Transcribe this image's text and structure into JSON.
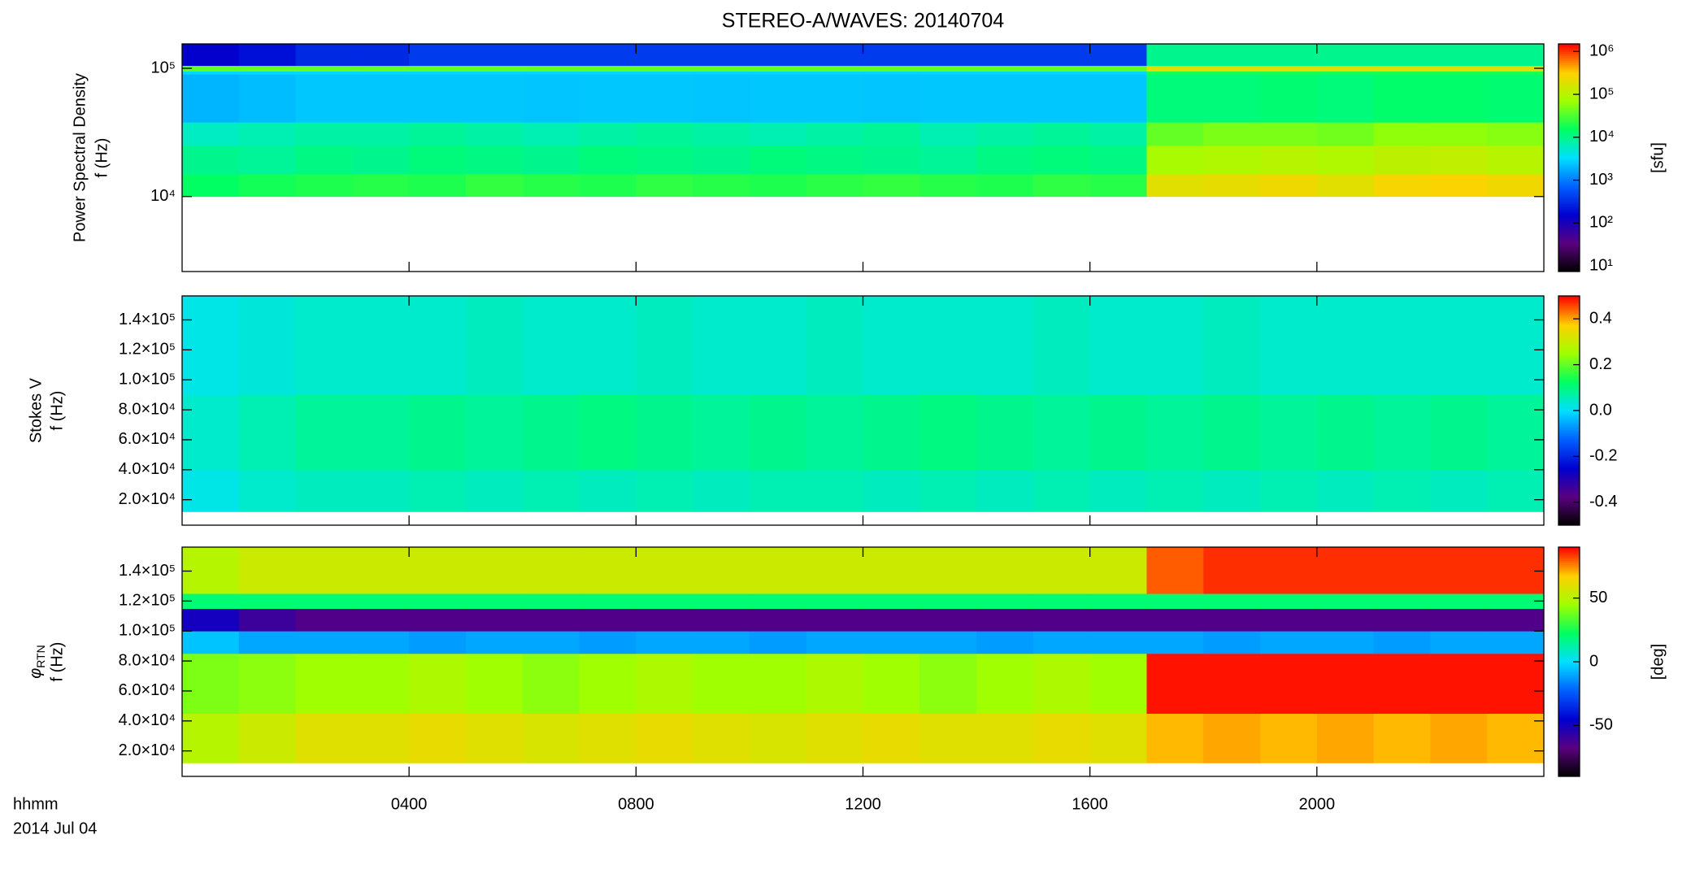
{
  "chart_data": [
    {
      "type": "heatmap",
      "title": "STEREO-A/WAVES: 20140704",
      "ylabel": [
        "Power Spectral Density",
        "f (Hz)"
      ],
      "xlim": [
        0,
        24
      ],
      "xticks": [
        4,
        8,
        12,
        16,
        20
      ],
      "ylim": [
        2600,
        155000
      ],
      "ylog": true,
      "yticks": [
        {
          "value": 10000,
          "label": "10⁴"
        },
        {
          "value": 100000,
          "label": "10⁵"
        }
      ],
      "x_edges": [
        0,
        1,
        2,
        3,
        4,
        5,
        6,
        7,
        8,
        9,
        10,
        11,
        12,
        13,
        14,
        15,
        16,
        17,
        18,
        19,
        20,
        21,
        22,
        23,
        24
      ],
      "y_edges": [
        10000,
        15000,
        25000,
        38000,
        90000,
        95000,
        105000,
        155000
      ],
      "values": [
        [
          15000,
          18000,
          20000,
          22000,
          20000,
          25000,
          22000,
          20000,
          24000,
          22000,
          20000,
          23000,
          25000,
          22000,
          20000,
          24000,
          22000,
          200000,
          220000,
          250000,
          200000,
          280000,
          300000,
          260000
        ],
        [
          10000,
          9000,
          11000,
          10000,
          12000,
          11000,
          10000,
          12000,
          11000,
          10000,
          12000,
          11000,
          10000,
          9000,
          11000,
          12000,
          11000,
          80000,
          90000,
          100000,
          90000,
          110000,
          120000,
          100000
        ],
        [
          6000,
          7000,
          8000,
          8000,
          9000,
          8000,
          7000,
          8000,
          9000,
          8000,
          7000,
          8000,
          9000,
          7000,
          8000,
          9000,
          8000,
          40000,
          50000,
          50000,
          45000,
          60000,
          60000,
          55000
        ],
        [
          2000,
          2200,
          2500,
          2500,
          2500,
          2500,
          2400,
          2500,
          2500,
          2400,
          2500,
          2500,
          2400,
          2500,
          2500,
          2500,
          2500,
          12000,
          12000,
          13000,
          12000,
          14000,
          14000,
          13000
        ],
        [
          3000,
          3000,
          3000,
          3000,
          3000,
          3000,
          3000,
          3000,
          3000,
          3000,
          3000,
          3000,
          3000,
          3000,
          3000,
          3000,
          3000,
          20000,
          20000,
          20000,
          20000,
          20000,
          20000,
          20000
        ],
        [
          40000,
          40000,
          40000,
          40000,
          40000,
          40000,
          40000,
          40000,
          40000,
          40000,
          40000,
          40000,
          40000,
          40000,
          40000,
          40000,
          40000,
          200000,
          200000,
          200000,
          200000,
          200000,
          200000,
          200000
        ],
        [
          150,
          200,
          300,
          300,
          400,
          400,
          400,
          400,
          400,
          400,
          400,
          400,
          400,
          400,
          400,
          400,
          400,
          10000,
          10000,
          10000,
          10000,
          10000,
          10000,
          10000
        ]
      ],
      "clim": [
        7.4,
        1500000
      ],
      "clog": true,
      "cticks": [
        {
          "value": 10,
          "label": "10¹"
        },
        {
          "value": 100,
          "label": "10²"
        },
        {
          "value": 1000,
          "label": "10³"
        },
        {
          "value": 10000,
          "label": "10⁴"
        },
        {
          "value": 100000,
          "label": "10⁵"
        },
        {
          "value": 1000000,
          "label": "10⁶"
        }
      ],
      "clabel": "[sfu]",
      "colormap": [
        "#000000",
        "#5a0080",
        "#0000d0",
        "#0060ff",
        "#00e0ff",
        "#00ff60",
        "#a0ff00",
        "#ffd000",
        "#ff0000"
      ]
    },
    {
      "type": "heatmap",
      "ylabel": [
        "Stokes V",
        "f (Hz)"
      ],
      "xlim": [
        0,
        24
      ],
      "xticks": [
        4,
        8,
        12,
        16,
        20
      ],
      "ylim": [
        3000,
        156000
      ],
      "ylog": false,
      "yticks": [
        {
          "value": 20000,
          "label": "2.0×10⁴"
        },
        {
          "value": 40000,
          "label": "4.0×10⁴"
        },
        {
          "value": 60000,
          "label": "6.0×10⁴"
        },
        {
          "value": 80000,
          "label": "8.0×10⁴"
        },
        {
          "value": 100000,
          "label": "1.0×10⁵"
        },
        {
          "value": 120000,
          "label": "1.2×10⁵"
        },
        {
          "value": 140000,
          "label": "1.4×10⁵"
        }
      ],
      "x_edges": [
        0,
        1,
        2,
        3,
        4,
        5,
        6,
        7,
        8,
        9,
        10,
        11,
        12,
        13,
        14,
        15,
        16,
        17,
        18,
        19,
        20,
        21,
        22,
        23,
        24
      ],
      "y_edges": [
        12000,
        40000,
        90000,
        156000
      ],
      "values": [
        [
          0.02,
          0.04,
          0.05,
          0.05,
          0.06,
          0.05,
          0.06,
          0.05,
          0.06,
          0.05,
          0.06,
          0.06,
          0.05,
          0.06,
          0.05,
          0.06,
          0.05,
          0.06,
          0.05,
          0.06,
          0.05,
          0.06,
          0.05,
          0.06
        ],
        [
          0.04,
          0.06,
          0.08,
          0.08,
          0.09,
          0.08,
          0.09,
          0.1,
          0.09,
          0.08,
          0.09,
          0.08,
          0.09,
          0.1,
          0.09,
          0.08,
          0.09,
          0.08,
          0.09,
          0.08,
          0.09,
          0.08,
          0.09,
          0.08
        ],
        [
          0.02,
          0.03,
          0.04,
          0.04,
          0.04,
          0.05,
          0.04,
          0.04,
          0.05,
          0.04,
          0.04,
          0.05,
          0.04,
          0.04,
          0.04,
          0.05,
          0.04,
          0.04,
          0.05,
          0.04,
          0.04,
          0.04,
          0.04,
          0.04
        ]
      ],
      "clim": [
        -0.5,
        0.5
      ],
      "clog": false,
      "cticks": [
        -0.4,
        -0.2,
        {
          "value": 0,
          "label": "0.0"
        },
        0.2,
        0.4
      ],
      "colormap": [
        "#000000",
        "#5a0080",
        "#0000d0",
        "#0060ff",
        "#00e0ff",
        "#00ff60",
        "#a0ff00",
        "#ffd000",
        "#ff0000"
      ]
    },
    {
      "type": "heatmap",
      "ylabel_symbol": "φ",
      "ylabel_subscript": "RTN",
      "ylabel": [
        "f (Hz)"
      ],
      "xlabel": "hhmm",
      "date": "2014 Jul 04",
      "xlim": [
        0,
        24
      ],
      "xticks": [
        {
          "value": 4,
          "label": "0400"
        },
        {
          "value": 8,
          "label": "0800"
        },
        {
          "value": 12,
          "label": "1200"
        },
        {
          "value": 16,
          "label": "1600"
        },
        {
          "value": 20,
          "label": "2000"
        }
      ],
      "ylim": [
        3000,
        156000
      ],
      "ylog": false,
      "yticks": [
        {
          "value": 20000,
          "label": "2.0×10⁴"
        },
        {
          "value": 40000,
          "label": "4.0×10⁴"
        },
        {
          "value": 60000,
          "label": "6.0×10⁴"
        },
        {
          "value": 80000,
          "label": "8.0×10⁴"
        },
        {
          "value": 100000,
          "label": "1.0×10⁵"
        },
        {
          "value": 120000,
          "label": "1.2×10⁵"
        },
        {
          "value": 140000,
          "label": "1.4×10⁵"
        }
      ],
      "x_edges": [
        0,
        1,
        2,
        3,
        4,
        5,
        6,
        7,
        8,
        9,
        10,
        11,
        12,
        13,
        14,
        15,
        16,
        17,
        18,
        19,
        20,
        21,
        22,
        23,
        24
      ],
      "y_edges": [
        12000,
        45000,
        85000,
        100000,
        115000,
        125000,
        156000
      ],
      "values": [
        [
          50,
          55,
          60,
          60,
          62,
          60,
          58,
          60,
          62,
          60,
          58,
          60,
          62,
          60,
          60,
          62,
          60,
          70,
          72,
          70,
          72,
          70,
          72,
          70
        ],
        [
          40,
          42,
          45,
          45,
          48,
          45,
          42,
          45,
          48,
          45,
          45,
          48,
          45,
          42,
          45,
          48,
          45,
          88,
          88,
          88,
          88,
          88,
          88,
          88
        ],
        [
          -5,
          -10,
          -10,
          -10,
          -12,
          -10,
          -10,
          -12,
          -10,
          -10,
          -12,
          -10,
          -10,
          -10,
          -12,
          -10,
          -10,
          -10,
          -12,
          -10,
          -10,
          -12,
          -10,
          -10
        ],
        [
          -50,
          -60,
          -65,
          -65,
          -65,
          -65,
          -65,
          -65,
          -65,
          -65,
          -65,
          -65,
          -65,
          -65,
          -65,
          -65,
          -65,
          -65,
          -65,
          -65,
          -65,
          -65,
          -65,
          -65
        ],
        [
          20,
          20,
          20,
          20,
          20,
          20,
          20,
          20,
          20,
          20,
          20,
          20,
          20,
          20,
          20,
          20,
          20,
          20,
          20,
          20,
          20,
          20,
          20,
          20
        ],
        [
          50,
          55,
          55,
          55,
          55,
          55,
          55,
          55,
          55,
          55,
          55,
          55,
          55,
          55,
          55,
          55,
          55,
          80,
          85,
          85,
          85,
          85,
          85,
          85
        ]
      ],
      "clim": [
        -90,
        90
      ],
      "clog": false,
      "cticks": [
        -50,
        0,
        50
      ],
      "clabel": "[deg]",
      "colormap": [
        "#000000",
        "#5a0080",
        "#0000d0",
        "#0060ff",
        "#00e0ff",
        "#00ff60",
        "#a0ff00",
        "#ffd000",
        "#ff0000"
      ]
    }
  ]
}
